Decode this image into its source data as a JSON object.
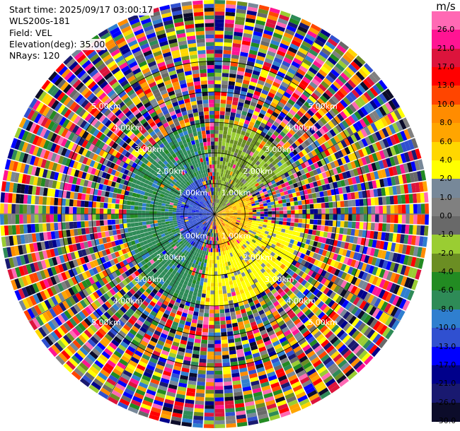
{
  "info": {
    "start_time": "Start time: 2025/09/17 03:00:17",
    "station": "WLS200s-181",
    "field": "Field: VEL",
    "elevation": "Elevation(deg): 35.00",
    "nrays": "NRays: 120"
  },
  "colorbar": {
    "unit": "m/s",
    "levels": [
      {
        "label": "-30.0",
        "color": "#0c0c2a"
      },
      {
        "label": "-26.0",
        "color": "#191970"
      },
      {
        "label": "-21.0",
        "color": "#00008b"
      },
      {
        "label": "-17.0",
        "color": "#0000ff"
      },
      {
        "label": "-13.0",
        "color": "#3050d0"
      },
      {
        "label": "-10.0",
        "color": "#2f7fcf"
      },
      {
        "label": "-8.0",
        "color": "#2e8b57"
      },
      {
        "label": "-6.0",
        "color": "#228b22"
      },
      {
        "label": "-4.0",
        "color": "#6b8e23"
      },
      {
        "label": "-2.0",
        "color": "#9acd32"
      },
      {
        "label": "-1.0",
        "color": "#696969"
      },
      {
        "label": "0.0",
        "color": "#808080"
      },
      {
        "label": "1.0",
        "color": "#778899"
      },
      {
        "label": "2.0",
        "color": "#ffff00"
      },
      {
        "label": "4.0",
        "color": "#ffd700"
      },
      {
        "label": "6.0",
        "color": "#ffa500"
      },
      {
        "label": "8.0",
        "color": "#ff8c00"
      },
      {
        "label": "10.0",
        "color": "#ff4500"
      },
      {
        "label": "13.0",
        "color": "#ff0000"
      },
      {
        "label": "17.0",
        "color": "#dc143c"
      },
      {
        "label": "21.0",
        "color": "#ff1493"
      },
      {
        "label": "26.0",
        "color": "#ff69b4"
      }
    ],
    "top_label": ""
  },
  "chart_data": {
    "type": "heatmap",
    "projection": "polar PPI",
    "field": "VEL",
    "units": "m/s",
    "elevation_deg": 35.0,
    "n_rays": 120,
    "range_rings_km": [
      1.0,
      2.0,
      3.0,
      4.0,
      5.0
    ],
    "ring_labels": [
      "1.00km",
      "2.00km",
      "3.00km",
      "4.00km",
      "5.00km"
    ],
    "max_range_km": 7.0,
    "azimuth_spokes_deg": [
      0,
      30,
      60,
      90,
      120,
      150,
      180,
      210,
      240,
      270,
      300,
      330
    ],
    "approx_velocity_regions": [
      {
        "azimuth_range_deg": [
          200,
          340
        ],
        "range_km": [
          0.0,
          1.2
        ],
        "velocity_ms": -12.0
      },
      {
        "azimuth_range_deg": [
          190,
          350
        ],
        "range_km": [
          1.2,
          3.0
        ],
        "velocity_ms": -7.0
      },
      {
        "azimuth_range_deg": [
          0,
          60
        ],
        "range_km": [
          0.0,
          3.0
        ],
        "velocity_ms": -2.0
      },
      {
        "azimuth_range_deg": [
          60,
          170
        ],
        "range_km": [
          0.0,
          1.2
        ],
        "velocity_ms": 6.0
      },
      {
        "azimuth_range_deg": [
          100,
          200
        ],
        "range_km": [
          1.2,
          3.0
        ],
        "velocity_ms": 3.0
      },
      {
        "azimuth_range_deg": [
          0,
          360
        ],
        "range_km": [
          3.0,
          7.0
        ],
        "velocity_ms": "noise"
      }
    ],
    "grid": true
  }
}
